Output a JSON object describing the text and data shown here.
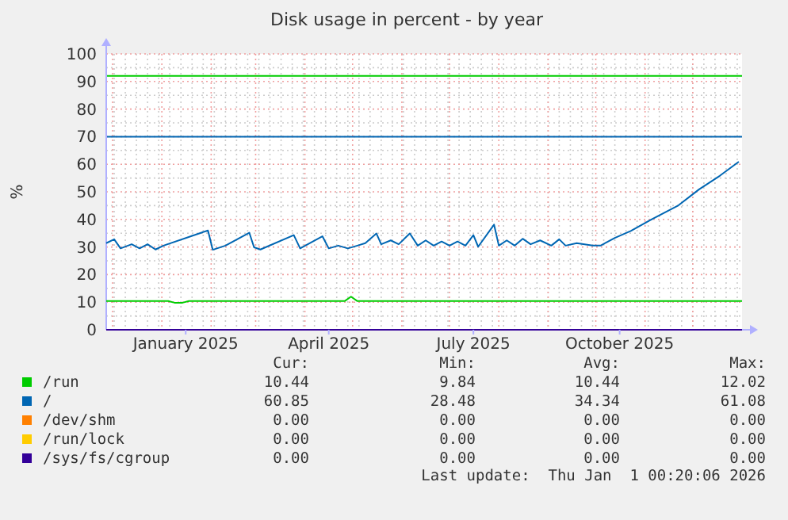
{
  "chart_data": {
    "type": "line",
    "title": "Disk usage in percent - by year",
    "ylabel": "%",
    "xlim": [
      "2024-11-27",
      "2026-01-01"
    ],
    "xticks": [
      {
        "value": "2025-01-16",
        "label": "January 2025"
      },
      {
        "value": "2025-04-16",
        "label": "April 2025"
      },
      {
        "value": "2025-07-16",
        "label": "July 2025"
      },
      {
        "value": "2025-10-16",
        "label": "October 2025"
      }
    ],
    "ylim": [
      0,
      100
    ],
    "yticks": [
      0,
      10,
      20,
      30,
      40,
      50,
      60,
      70,
      80,
      90,
      100
    ],
    "grid": true,
    "legend": "bottom",
    "marker": "none",
    "line_style": "solid",
    "ref_lines": [
      {
        "axis": "y",
        "value": 92,
        "color": "#00cc00"
      },
      {
        "axis": "y",
        "value": 70,
        "color": "#0066b3"
      }
    ],
    "series": [
      {
        "name": "/run",
        "color": "#00cc00",
        "x": [
          "2024-11-27",
          "2025-01-05",
          "2025-01-09",
          "2025-01-14",
          "2025-01-18",
          "2025-04-26",
          "2025-04-30",
          "2025-05-04",
          "2026-01-01"
        ],
        "values": [
          10.4,
          10.4,
          9.8,
          9.8,
          10.4,
          10.4,
          12,
          10.4,
          10.4
        ]
      },
      {
        "name": "/",
        "color": "#0066b3",
        "x": [
          "2024-11-27",
          "2024-12-02",
          "2024-12-06",
          "2024-12-13",
          "2024-12-18",
          "2024-12-23",
          "2024-12-28",
          "2025-01-02",
          "2025-01-30",
          "2025-02-02",
          "2025-02-10",
          "2025-02-25",
          "2025-02-28",
          "2025-03-04",
          "2025-03-25",
          "2025-03-29",
          "2025-04-12",
          "2025-04-16",
          "2025-04-22",
          "2025-04-28",
          "2025-05-04",
          "2025-05-09",
          "2025-05-16",
          "2025-05-19",
          "2025-05-25",
          "2025-05-30",
          "2025-06-06",
          "2025-06-11",
          "2025-06-16",
          "2025-06-21",
          "2025-06-26",
          "2025-07-01",
          "2025-07-06",
          "2025-07-11",
          "2025-07-16",
          "2025-07-19",
          "2025-07-29",
          "2025-08-01",
          "2025-08-06",
          "2025-08-11",
          "2025-08-16",
          "2025-08-21",
          "2025-08-27",
          "2025-09-03",
          "2025-09-08",
          "2025-09-12",
          "2025-09-19",
          "2025-09-29",
          "2025-10-04",
          "2025-10-13",
          "2025-10-23",
          "2025-11-05",
          "2025-11-22",
          "2025-12-05",
          "2025-12-18",
          "2025-12-30"
        ],
        "values": [
          31.4,
          32.8,
          29.5,
          31.0,
          29.5,
          31.0,
          29.1,
          30.5,
          36.0,
          29.0,
          30.5,
          35.2,
          29.9,
          29.1,
          34.3,
          29.5,
          33.9,
          29.5,
          30.5,
          29.5,
          30.5,
          31.4,
          34.9,
          31.0,
          32.4,
          31.0,
          34.9,
          30.5,
          32.4,
          30.5,
          32.0,
          30.5,
          32.0,
          30.5,
          34.3,
          30.1,
          38.1,
          30.5,
          32.4,
          30.5,
          33.0,
          31.0,
          32.4,
          30.5,
          32.8,
          30.5,
          31.4,
          30.5,
          30.5,
          33.3,
          35.8,
          40.0,
          45.1,
          50.9,
          55.8,
          60.9
        ]
      },
      {
        "name": "/dev/shm",
        "color": "#ff8000",
        "values": [
          null,
          null
        ]
      },
      {
        "name": "/run/lock",
        "color": "#ffcc00",
        "values": [
          null,
          null
        ]
      },
      {
        "name": "/sys/fs/cgroup",
        "color": "#330099",
        "x": [
          "2024-11-27",
          "2026-01-01"
        ],
        "values": [
          0,
          0
        ]
      }
    ],
    "annotations": [
      "Cur:",
      "Min:",
      "Avg:",
      "Max:",
      "10.44",
      "9.84",
      "10.44",
      "12.02",
      "60.85",
      "28.48",
      "34.34",
      "61.08",
      "0.00",
      "0.00",
      "0.00",
      "0.00",
      "0.00",
      "0.00",
      "0.00",
      "0.00",
      "0.00",
      "0.00",
      "0.00",
      "0.00",
      "Last update:  Thu Jan  1 00:20:06 2026"
    ]
  }
}
